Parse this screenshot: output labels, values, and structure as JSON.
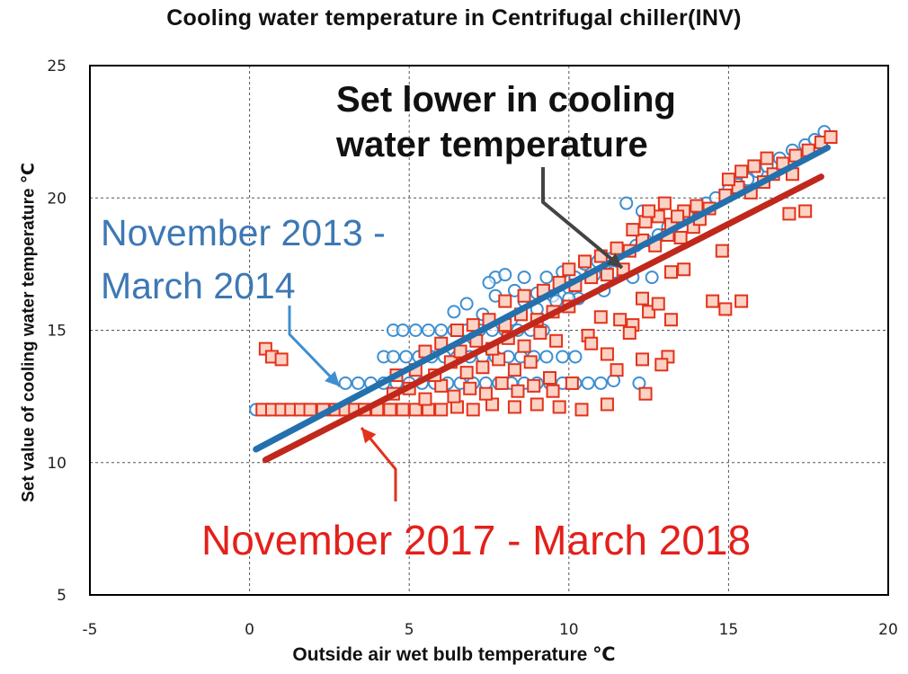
{
  "chart_data": {
    "type": "scatter",
    "title": "Cooling water temperature in Centrifugal chiller(INV)",
    "xlabel": "Outside air wet bulb temperature ℃",
    "ylabel": "Set value of cooling water temperature ℃",
    "xlim": [
      -5,
      20
    ],
    "ylim": [
      5,
      25
    ],
    "xticks": [
      "-5",
      "0",
      "5",
      "10",
      "15",
      "20"
    ],
    "yticks": [
      "5",
      "10",
      "15",
      "20",
      "25"
    ],
    "grid": true,
    "annotations": {
      "lower": [
        "Set lower in cooling",
        "water temperature"
      ],
      "period1": [
        "November 2013 -",
        "March 2014"
      ],
      "period2": "November 2017 - March 2018"
    },
    "colors": {
      "series1": "#3d8fd1",
      "series1_line": "#2470ad",
      "series2": "#e3321b",
      "series2_fill": "#fbd2c4",
      "series2_line": "#c0281c",
      "arrow_dark": "#444444"
    },
    "series": [
      {
        "marker": "circle",
        "trend": [
          [
            0.2,
            10.5
          ],
          [
            18.1,
            21.9
          ]
        ],
        "points": [
          [
            0.2,
            12
          ],
          [
            0.4,
            12
          ],
          [
            0.6,
            12
          ],
          [
            1.0,
            12
          ],
          [
            1.4,
            12
          ],
          [
            1.8,
            12
          ],
          [
            2.2,
            12
          ],
          [
            2.6,
            12
          ],
          [
            3.0,
            12
          ],
          [
            3.3,
            12
          ],
          [
            3.6,
            12
          ],
          [
            4.0,
            12
          ],
          [
            4.4,
            12
          ],
          [
            4.8,
            12
          ],
          [
            5.2,
            12
          ],
          [
            5.6,
            12
          ],
          [
            3.0,
            13
          ],
          [
            3.4,
            13
          ],
          [
            3.8,
            13
          ],
          [
            4.2,
            13
          ],
          [
            4.6,
            13
          ],
          [
            5.0,
            13
          ],
          [
            5.4,
            13
          ],
          [
            5.8,
            13
          ],
          [
            6.2,
            13
          ],
          [
            6.6,
            13
          ],
          [
            7.0,
            13
          ],
          [
            7.4,
            13
          ],
          [
            7.8,
            13
          ],
          [
            8.2,
            13
          ],
          [
            8.6,
            13
          ],
          [
            9.0,
            13
          ],
          [
            9.4,
            13
          ],
          [
            9.8,
            13
          ],
          [
            10.2,
            13
          ],
          [
            10.6,
            13
          ],
          [
            11.0,
            13
          ],
          [
            4.2,
            14
          ],
          [
            4.5,
            14
          ],
          [
            4.9,
            14
          ],
          [
            5.3,
            14
          ],
          [
            5.7,
            14
          ],
          [
            6.1,
            14
          ],
          [
            6.5,
            14
          ],
          [
            6.9,
            14
          ],
          [
            7.3,
            14
          ],
          [
            7.7,
            14
          ],
          [
            8.1,
            14
          ],
          [
            8.5,
            14
          ],
          [
            8.9,
            14
          ],
          [
            9.3,
            14
          ],
          [
            9.8,
            14
          ],
          [
            10.2,
            14
          ],
          [
            4.5,
            15
          ],
          [
            4.8,
            15
          ],
          [
            5.2,
            15
          ],
          [
            5.6,
            15
          ],
          [
            6.0,
            15
          ],
          [
            6.4,
            15
          ],
          [
            6.8,
            15
          ],
          [
            7.2,
            15
          ],
          [
            7.6,
            15
          ],
          [
            8.0,
            15
          ],
          [
            8.4,
            15
          ],
          [
            8.8,
            15
          ],
          [
            9.2,
            15
          ],
          [
            6.4,
            15.7
          ],
          [
            7.3,
            15.6
          ],
          [
            7.7,
            16.3
          ],
          [
            8.3,
            16.5
          ],
          [
            8.6,
            16.1
          ],
          [
            9.0,
            16.4
          ],
          [
            9.5,
            16.3
          ],
          [
            10.0,
            16.6
          ],
          [
            10.3,
            16.2
          ],
          [
            6.8,
            16.0
          ],
          [
            7.7,
            17.0
          ],
          [
            7.5,
            16.8
          ],
          [
            8.0,
            17.1
          ],
          [
            8.6,
            17.0
          ],
          [
            9.3,
            17.0
          ],
          [
            9.8,
            17.2
          ],
          [
            10.2,
            17.0
          ],
          [
            10.8,
            17.1
          ],
          [
            11.4,
            17.2
          ],
          [
            12.0,
            17.0
          ],
          [
            12.6,
            17.0
          ],
          [
            10.5,
            17.5
          ],
          [
            10.9,
            17.6
          ],
          [
            11.3,
            17.7
          ],
          [
            11.7,
            18.0
          ],
          [
            12.1,
            18.2
          ],
          [
            12.4,
            18.4
          ],
          [
            12.8,
            18.6
          ],
          [
            13.1,
            18.9
          ],
          [
            13.4,
            19.2
          ],
          [
            11.8,
            19.8
          ],
          [
            12.3,
            19.5
          ],
          [
            13.7,
            19.4
          ],
          [
            14.0,
            19.6
          ],
          [
            14.3,
            19.8
          ],
          [
            14.6,
            20.0
          ],
          [
            15.0,
            20.3
          ],
          [
            15.3,
            20.5
          ],
          [
            15.6,
            20.7
          ],
          [
            15.9,
            21.0
          ],
          [
            16.2,
            21.2
          ],
          [
            16.6,
            21.5
          ],
          [
            17.0,
            21.8
          ],
          [
            17.4,
            22.0
          ],
          [
            17.7,
            22.2
          ],
          [
            18.0,
            22.5
          ],
          [
            6.0,
            14.5
          ],
          [
            7.0,
            14.7
          ],
          [
            8.2,
            15.4
          ],
          [
            9.0,
            15.8
          ],
          [
            9.6,
            16.1
          ],
          [
            10.0,
            16.2
          ],
          [
            11.1,
            16.5
          ],
          [
            12.2,
            13.0
          ],
          [
            11.4,
            13.1
          ]
        ]
      },
      {
        "marker": "square",
        "trend": [
          [
            0.5,
            10.1
          ],
          [
            17.9,
            20.8
          ]
        ],
        "points": [
          [
            0.5,
            14.3
          ],
          [
            0.7,
            14.0
          ],
          [
            1.0,
            13.9
          ],
          [
            0.4,
            12
          ],
          [
            0.7,
            12
          ],
          [
            1.0,
            12
          ],
          [
            1.3,
            12
          ],
          [
            1.6,
            12
          ],
          [
            1.9,
            12
          ],
          [
            2.3,
            12
          ],
          [
            2.7,
            12
          ],
          [
            3.0,
            12
          ],
          [
            3.3,
            12
          ],
          [
            3.6,
            12
          ],
          [
            4.0,
            12
          ],
          [
            4.4,
            12
          ],
          [
            4.8,
            12
          ],
          [
            5.2,
            12
          ],
          [
            5.6,
            12
          ],
          [
            6.0,
            12
          ],
          [
            6.5,
            12.1
          ],
          [
            7.0,
            12.0
          ],
          [
            7.6,
            12.2
          ],
          [
            8.3,
            12.1
          ],
          [
            9.0,
            12.2
          ],
          [
            9.7,
            12.1
          ],
          [
            10.4,
            12.0
          ],
          [
            11.2,
            12.2
          ],
          [
            12.4,
            12.6
          ],
          [
            4.5,
            12.6
          ],
          [
            5.0,
            12.8
          ],
          [
            5.5,
            12.4
          ],
          [
            6.0,
            12.9
          ],
          [
            6.4,
            12.5
          ],
          [
            6.9,
            12.8
          ],
          [
            7.4,
            12.6
          ],
          [
            7.9,
            13.0
          ],
          [
            8.4,
            12.7
          ],
          [
            8.9,
            12.9
          ],
          [
            9.5,
            12.7
          ],
          [
            4.6,
            13.3
          ],
          [
            5.2,
            13.5
          ],
          [
            5.8,
            13.3
          ],
          [
            6.3,
            13.8
          ],
          [
            6.8,
            13.4
          ],
          [
            7.3,
            13.6
          ],
          [
            7.8,
            13.9
          ],
          [
            8.3,
            13.5
          ],
          [
            8.8,
            13.8
          ],
          [
            9.4,
            13.2
          ],
          [
            10.1,
            13.0
          ],
          [
            11.5,
            13.5
          ],
          [
            12.3,
            13.9
          ],
          [
            13.1,
            14.0
          ],
          [
            12.9,
            13.7
          ],
          [
            5.5,
            14.2
          ],
          [
            6.0,
            14.5
          ],
          [
            6.6,
            14.2
          ],
          [
            7.1,
            14.6
          ],
          [
            7.6,
            14.3
          ],
          [
            8.1,
            14.7
          ],
          [
            8.6,
            14.4
          ],
          [
            9.1,
            14.9
          ],
          [
            9.6,
            14.6
          ],
          [
            10.6,
            14.8
          ],
          [
            11.2,
            14.1
          ],
          [
            10.7,
            14.5
          ],
          [
            6.5,
            15.0
          ],
          [
            7.0,
            15.2
          ],
          [
            7.5,
            15.4
          ],
          [
            8.0,
            15.2
          ],
          [
            8.5,
            15.6
          ],
          [
            9.0,
            15.4
          ],
          [
            9.5,
            15.7
          ],
          [
            10.0,
            15.9
          ],
          [
            11.0,
            15.5
          ],
          [
            11.6,
            15.4
          ],
          [
            12.0,
            15.2
          ],
          [
            13.2,
            15.4
          ],
          [
            11.9,
            14.9
          ],
          [
            8.0,
            16.1
          ],
          [
            8.6,
            16.3
          ],
          [
            9.2,
            16.5
          ],
          [
            9.7,
            16.8
          ],
          [
            10.2,
            16.7
          ],
          [
            10.7,
            17.0
          ],
          [
            11.2,
            17.1
          ],
          [
            11.7,
            17.3
          ],
          [
            12.3,
            16.2
          ],
          [
            12.5,
            15.7
          ],
          [
            12.8,
            16.0
          ],
          [
            14.5,
            16.1
          ],
          [
            14.9,
            15.8
          ],
          [
            15.4,
            16.1
          ],
          [
            10.0,
            17.3
          ],
          [
            10.5,
            17.6
          ],
          [
            11.0,
            17.8
          ],
          [
            11.5,
            18.1
          ],
          [
            11.9,
            18.0
          ],
          [
            12.3,
            18.4
          ],
          [
            12.7,
            18.2
          ],
          [
            13.1,
            18.6
          ],
          [
            13.5,
            18.5
          ],
          [
            13.9,
            18.9
          ],
          [
            13.2,
            17.2
          ],
          [
            13.6,
            17.3
          ],
          [
            14.8,
            18.0
          ],
          [
            12.0,
            18.8
          ],
          [
            12.4,
            19.1
          ],
          [
            12.8,
            19.3
          ],
          [
            13.2,
            19.0
          ],
          [
            13.6,
            19.5
          ],
          [
            14.0,
            19.7
          ],
          [
            14.4,
            19.6
          ],
          [
            14.9,
            20.1
          ],
          [
            15.3,
            20.4
          ],
          [
            15.7,
            20.2
          ],
          [
            16.1,
            20.6
          ],
          [
            16.4,
            20.9
          ],
          [
            16.7,
            21.3
          ],
          [
            17.1,
            21.6
          ],
          [
            17.5,
            21.8
          ],
          [
            17.9,
            22.1
          ],
          [
            18.2,
            22.3
          ],
          [
            15.0,
            20.7
          ],
          [
            15.4,
            21.0
          ],
          [
            15.8,
            21.2
          ],
          [
            16.2,
            21.5
          ],
          [
            17.0,
            20.9
          ],
          [
            16.9,
            19.4
          ],
          [
            17.4,
            19.5
          ],
          [
            12.5,
            19.5
          ],
          [
            13.0,
            19.8
          ],
          [
            13.4,
            19.3
          ],
          [
            14.1,
            19.2
          ]
        ]
      }
    ]
  }
}
